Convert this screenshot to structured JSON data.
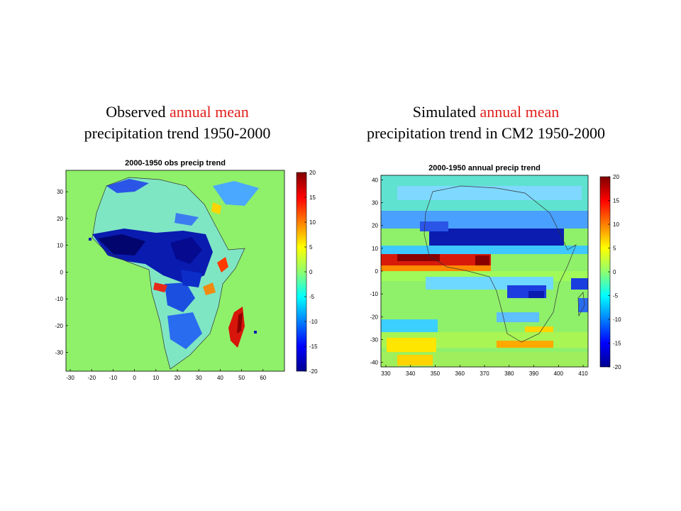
{
  "captions": {
    "left": {
      "line1_a": "Observed ",
      "line1_b": "annual mean",
      "line2": "precipitation trend 1950-2000"
    },
    "right": {
      "line1_a": "Simulated ",
      "line1_b": "annual mean",
      "line2": "precipitation trend in CM2 1950-2000"
    }
  },
  "colors": {
    "highlight": "#e0201b",
    "ocean_zero": "#8ff06a"
  },
  "chart_data": [
    {
      "type": "heatmap",
      "title": "2000-1950 obs precip trend",
      "xticks": [
        -30,
        -20,
        -10,
        0,
        10,
        20,
        30,
        40,
        50,
        60
      ],
      "yticks": [
        30,
        20,
        10,
        0,
        -10,
        -20,
        -30
      ],
      "xlim": [
        -32,
        70
      ],
      "ylim": [
        -37,
        38
      ],
      "colorbar": {
        "min": -20,
        "max": 20,
        "ticks": [
          20,
          15,
          10,
          5,
          0,
          -5,
          -10,
          -15,
          -20
        ],
        "colormap": "jet"
      }
    },
    {
      "type": "heatmap",
      "title": "2000-1950 annual precip trend",
      "xticks": [
        330,
        340,
        350,
        360,
        370,
        380,
        390,
        400,
        410
      ],
      "yticks": [
        40,
        30,
        20,
        10,
        0,
        -10,
        -20,
        -30,
        -40
      ],
      "xlim": [
        328,
        412
      ],
      "ylim": [
        -42,
        42
      ],
      "colorbar": {
        "min": -20,
        "max": 20,
        "ticks": [
          20,
          15,
          10,
          5,
          0,
          -5,
          -10,
          -15,
          -20
        ],
        "colormap": "jet"
      }
    }
  ]
}
